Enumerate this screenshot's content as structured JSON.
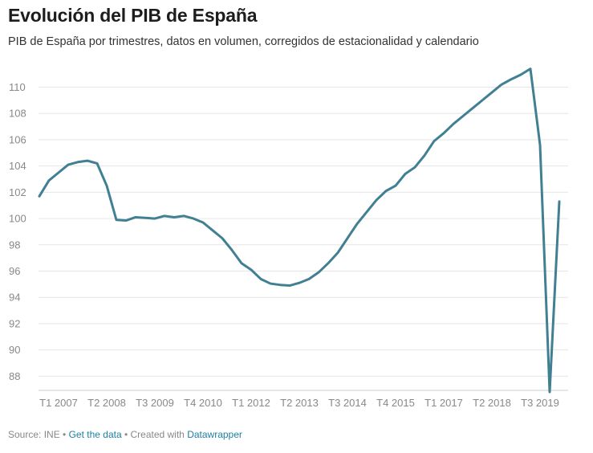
{
  "title": "Evolución del PIB de España",
  "subtitle": "PIB de España por trimestres, datos en volumen, corregidos de estacionalidad y calendario",
  "footer": {
    "source": "Source: INE",
    "sep1": " • ",
    "get_data": "Get the data",
    "sep2": " • Created with ",
    "datawrapper": "Datawrapper"
  },
  "chart_data": {
    "type": "line",
    "title": "Evolución del PIB de España",
    "subtitle": "PIB de España por trimestres, datos en volumen, corregidos de estacionalidad y calendario",
    "color": "#417f93",
    "grid": true,
    "ylim": [
      86.8,
      111.5
    ],
    "y_ticks": [
      88,
      90,
      92,
      94,
      96,
      98,
      100,
      102,
      104,
      106,
      108,
      110
    ],
    "x_ticks": [
      {
        "label": "T1 2007",
        "index": 0
      },
      {
        "label": "T2 2008",
        "index": 5
      },
      {
        "label": "T3 2009",
        "index": 10
      },
      {
        "label": "T4 2010",
        "index": 15
      },
      {
        "label": "T1 2012",
        "index": 20
      },
      {
        "label": "T2 2013",
        "index": 25
      },
      {
        "label": "T3 2014",
        "index": 30
      },
      {
        "label": "T4 2015",
        "index": 35
      },
      {
        "label": "T1 2017",
        "index": 40
      },
      {
        "label": "T2 2018",
        "index": 45
      },
      {
        "label": "T3 2019",
        "index": 50
      }
    ],
    "x": [
      "T1 2007",
      "T2 2007",
      "T3 2007",
      "T4 2007",
      "T1 2008",
      "T2 2008",
      "T3 2008",
      "T4 2008",
      "T1 2009",
      "T2 2009",
      "T3 2009",
      "T4 2009",
      "T1 2010",
      "T2 2010",
      "T3 2010",
      "T4 2010",
      "T1 2011",
      "T2 2011",
      "T3 2011",
      "T4 2011",
      "T1 2012",
      "T2 2012",
      "T3 2012",
      "T4 2012",
      "T1 2013",
      "T2 2013",
      "T3 2013",
      "T4 2013",
      "T1 2014",
      "T2 2014",
      "T3 2014",
      "T4 2014",
      "T1 2015",
      "T2 2015",
      "T3 2015",
      "T4 2015",
      "T1 2016",
      "T2 2016",
      "T3 2016",
      "T4 2016",
      "T1 2017",
      "T2 2017",
      "T3 2017",
      "T4 2017",
      "T1 2018",
      "T2 2018",
      "T3 2018",
      "T4 2018",
      "T1 2019",
      "T2 2019",
      "T3 2019",
      "T4 2019",
      "T1 2020",
      "T2 2020",
      "T3 2020"
    ],
    "values": [
      101.7,
      102.9,
      103.5,
      104.1,
      104.3,
      104.4,
      104.2,
      102.5,
      99.9,
      99.85,
      100.1,
      100.05,
      100.0,
      100.2,
      100.1,
      100.2,
      100.0,
      99.7,
      99.1,
      98.5,
      97.6,
      96.6,
      96.1,
      95.4,
      95.05,
      94.95,
      94.9,
      95.1,
      95.4,
      95.9,
      96.6,
      97.4,
      98.5,
      99.6,
      100.5,
      101.4,
      102.1,
      102.5,
      103.4,
      103.9,
      104.8,
      105.9,
      106.5,
      107.2,
      107.8,
      108.4,
      109.0,
      109.6,
      110.2,
      110.6,
      110.95,
      111.4,
      105.6,
      86.8,
      101.3
    ]
  }
}
